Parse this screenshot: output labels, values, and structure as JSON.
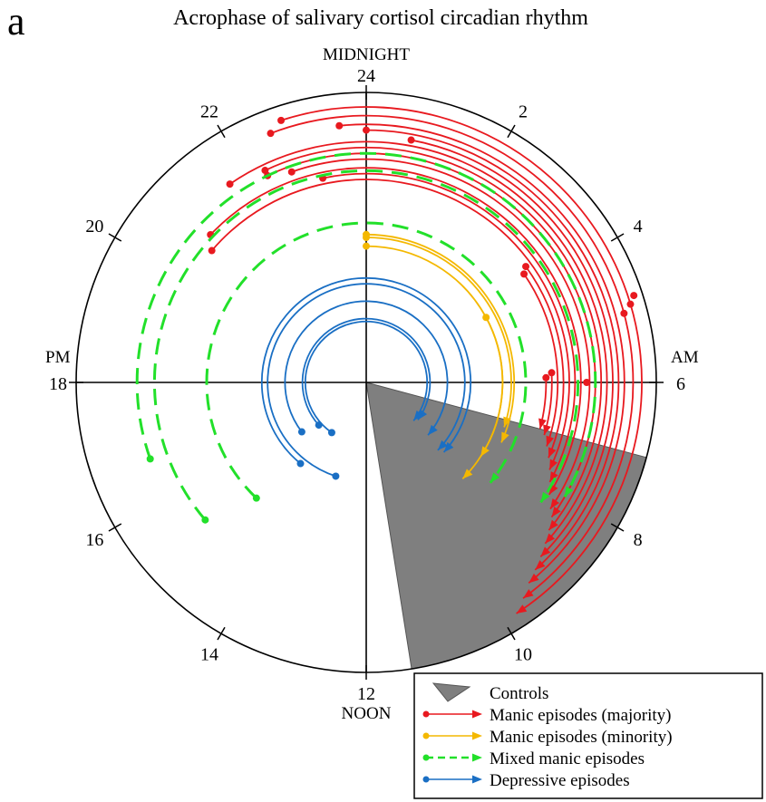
{
  "panel_letter": "a",
  "chart_data": {
    "type": "polar-arc",
    "title": "Acrophase of salivary cortisol circadian rhythm",
    "cardinal_labels": {
      "top": "MIDNIGHT",
      "right": "AM",
      "left": "PM",
      "bottom": "NOON"
    },
    "hour_ticks": [
      24,
      2,
      4,
      6,
      8,
      10,
      12,
      14,
      16,
      18,
      20,
      22
    ],
    "controls_wedge": {
      "label": "Controls",
      "start_hour": 7.0,
      "end_hour": 11.4,
      "color": "#7f7f7f"
    },
    "series": [
      {
        "name": "Manic episodes (majority)",
        "color": "#e8191f",
        "dash": false,
        "arcs": [
          {
            "r": 0.95,
            "start": 22.8,
            "end": 9.8
          },
          {
            "r": 0.92,
            "start": 22.6,
            "end": 9.6
          },
          {
            "r": 0.89,
            "start": 23.6,
            "end": 9.4
          },
          {
            "r": 0.87,
            "start": 0.0,
            "end": 9.2
          },
          {
            "r": 0.85,
            "start": 0.7,
            "end": 9.0
          },
          {
            "r": 0.83,
            "start": 21.7,
            "end": 8.8
          },
          {
            "r": 0.81,
            "start": 22.3,
            "end": 8.6
          },
          {
            "r": 0.79,
            "start": 22.3,
            "end": 8.4
          },
          {
            "r": 0.77,
            "start": 22.7,
            "end": 8.3
          },
          {
            "r": 0.74,
            "start": 20.9,
            "end": 8.1
          },
          {
            "r": 0.72,
            "start": 23.2,
            "end": 7.9
          },
          {
            "r": 0.7,
            "start": 20.7,
            "end": 7.7
          },
          {
            "r": 0.68,
            "start": 3.6,
            "end": 7.5
          },
          {
            "r": 0.66,
            "start": 3.7,
            "end": 7.3
          },
          {
            "r": 0.64,
            "start": 5.8,
            "end": 7.1
          },
          {
            "r": 0.62,
            "start": 5.9,
            "end": 7.0
          }
        ],
        "extra_points": [
          {
            "r": 0.97,
            "hour": 4.8
          },
          {
            "r": 0.95,
            "hour": 4.9
          },
          {
            "r": 0.92,
            "hour": 5.0
          },
          {
            "r": 0.76,
            "hour": 6.0
          }
        ]
      },
      {
        "name": "Manic episodes (minority)",
        "color": "#f4b800",
        "dash": false,
        "arcs": [
          {
            "r": 0.47,
            "start": 4.1,
            "end": 9.0
          },
          {
            "r": 0.47,
            "start": 0.0,
            "end": 8.2
          },
          {
            "r": 0.51,
            "start": 0.0,
            "end": 7.6
          },
          {
            "r": 0.5,
            "start": 0.0,
            "end": 7.2
          }
        ]
      },
      {
        "name": "Mixed manic episodes",
        "color": "#22e02a",
        "dash": true,
        "arcs": [
          {
            "r": 0.79,
            "start": 16.7,
            "end": 8.0
          },
          {
            "r": 0.73,
            "start": 15.3,
            "end": 8.3
          },
          {
            "r": 0.55,
            "start": 14.9,
            "end": 8.6
          }
        ]
      },
      {
        "name": "Depressive episodes",
        "color": "#1a6fc4",
        "dash": false,
        "arcs": [
          {
            "r": 0.22,
            "start": 15.2,
            "end": 8.4
          },
          {
            "r": 0.21,
            "start": 14.3,
            "end": 8.6
          },
          {
            "r": 0.28,
            "start": 15.5,
            "end": 8.7
          },
          {
            "r": 0.36,
            "start": 14.6,
            "end": 8.8
          },
          {
            "r": 0.34,
            "start": 13.2,
            "end": 8.9
          }
        ]
      }
    ]
  }
}
